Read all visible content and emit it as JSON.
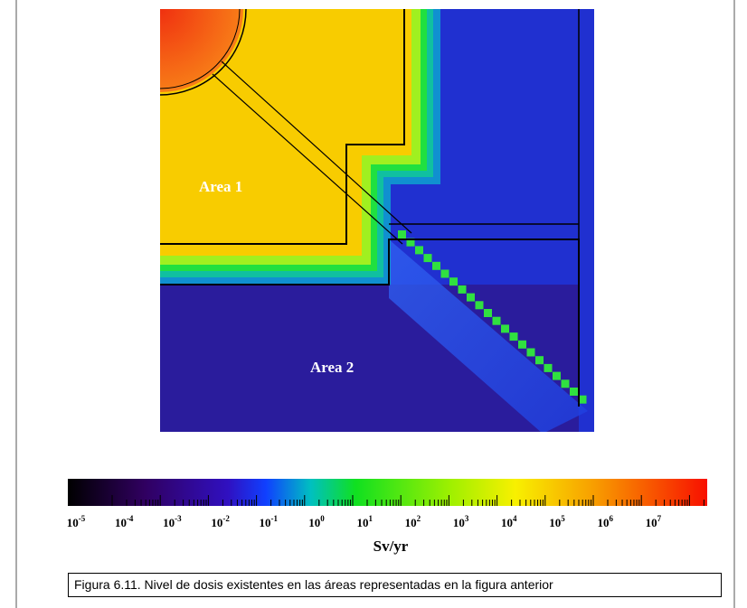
{
  "figure": {
    "areas": [
      "Area 1",
      "Area 2"
    ],
    "colorbar": {
      "ticks": [
        {
          "base": "10",
          "exponent": "-5"
        },
        {
          "base": "10",
          "exponent": "-4"
        },
        {
          "base": "10",
          "exponent": "-3"
        },
        {
          "base": "10",
          "exponent": "-2"
        },
        {
          "base": "10",
          "exponent": "-1"
        },
        {
          "base": "10",
          "exponent": "0"
        },
        {
          "base": "10",
          "exponent": "1"
        },
        {
          "base": "10",
          "exponent": "2"
        },
        {
          "base": "10",
          "exponent": "3"
        },
        {
          "base": "10",
          "exponent": "4"
        },
        {
          "base": "10",
          "exponent": "5"
        },
        {
          "base": "10",
          "exponent": "6"
        },
        {
          "base": "10",
          "exponent": "7"
        }
      ],
      "unit": "Sv/yr"
    },
    "caption": "Figura 6.11. Nivel de dosis existentes en las áreas representadas en la figura anterior"
  }
}
